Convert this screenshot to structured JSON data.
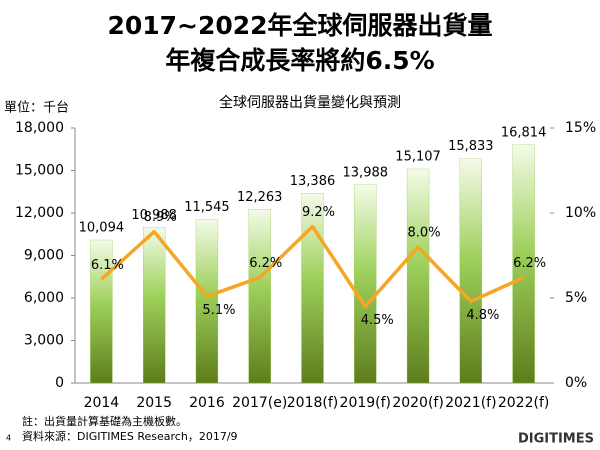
{
  "chart_data": {
    "type": "bar",
    "title": [
      "2017~2022年全球伺服器出貨量",
      "年複合成長率將約6.5%"
    ],
    "subtitle": "全球伺服器出貨量變化與預測",
    "unit_label": "單位：千台",
    "categories": [
      "2014",
      "2015",
      "2016",
      "2017(e)",
      "2018(f)",
      "2019(f)",
      "2020(f)",
      "2021(f)",
      "2022(f)"
    ],
    "series": [
      {
        "type": "bar",
        "color": "#8cc63f",
        "values": [
          10094,
          10988,
          11545,
          12263,
          13386,
          13988,
          15107,
          15833,
          16814
        ],
        "value_labels": [
          "10,094",
          "10,988",
          "11,545",
          "12,263",
          "13,386",
          "13,988",
          "15,107",
          "15,833",
          "16,814"
        ]
      },
      {
        "type": "line",
        "axis": "y2",
        "color": "#f5a623",
        "values": [
          6.1,
          8.9,
          5.1,
          6.2,
          9.2,
          4.5,
          8.0,
          4.8,
          6.2
        ],
        "value_labels": [
          "6.1%",
          "8.9%",
          "5.1%",
          "6.2%",
          "9.2%",
          "4.5%",
          "8.0%",
          "4.8%",
          "6.2%"
        ]
      }
    ],
    "ylim": [
      0,
      18000
    ],
    "yticks": [
      0,
      {
        "value": 3000,
        "label": "3,000"
      },
      {
        "value": 6000,
        "label": "6,000"
      },
      {
        "value": 9000,
        "label": "9,000"
      },
      {
        "value": 12000,
        "label": "12,000"
      },
      {
        "value": 15000,
        "label": "15,000"
      },
      {
        "value": 18000,
        "label": "18,000"
      }
    ],
    "y2lim": [
      0,
      15
    ],
    "y2ticks": [
      {
        "value": 0,
        "label": "0%"
      },
      {
        "value": 5,
        "label": "5%"
      },
      {
        "value": 10,
        "label": "10%"
      },
      {
        "value": 15,
        "label": "15%"
      }
    ],
    "notes": [
      "註：出貨量計算基礎為主機板數。",
      "資料來源：DIGITIMES Research，2017/9"
    ],
    "page_number": "4",
    "logo": "DIGITIMES"
  }
}
